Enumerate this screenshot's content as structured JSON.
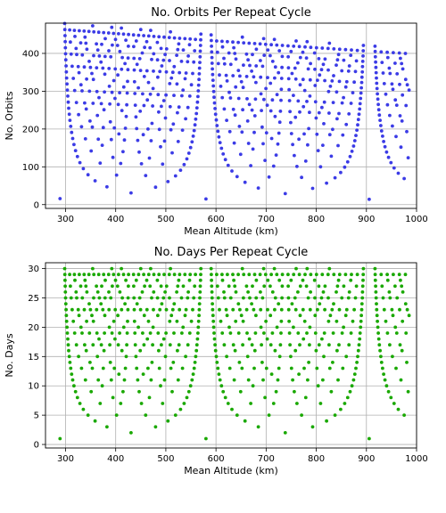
{
  "chart_data": [
    {
      "id": "orbits",
      "type": "scatter",
      "title": "No. Orbits Per Repeat Cycle",
      "xlabel": "Mean Altitude (km)",
      "ylabel": "No. Orbits",
      "xlim": [
        260,
        1000
      ],
      "ylim": [
        -10,
        480
      ],
      "xticks": [
        300,
        400,
        500,
        600,
        700,
        800,
        900,
        1000
      ],
      "yticks": [
        0,
        100,
        200,
        300,
        400
      ],
      "grid": true,
      "color": "#3b3be6",
      "cycle_days": 30,
      "altitude_range_km": [
        285,
        985
      ],
      "sample_points": [
        {
          "x": 287,
          "y": 460
        },
        {
          "x": 290,
          "y": 155
        },
        {
          "x": 300,
          "y": 90
        },
        {
          "x": 325,
          "y": 60
        },
        {
          "x": 360,
          "y": 45
        },
        {
          "x": 402,
          "y": 30
        },
        {
          "x": 450,
          "y": 45
        },
        {
          "x": 495,
          "y": 75
        },
        {
          "x": 548,
          "y": 14
        },
        {
          "x": 600,
          "y": 75
        },
        {
          "x": 650,
          "y": 45
        },
        {
          "x": 710,
          "y": 28
        },
        {
          "x": 760,
          "y": 45
        },
        {
          "x": 820,
          "y": 75
        },
        {
          "x": 875,
          "y": 14
        },
        {
          "x": 930,
          "y": 80
        },
        {
          "x": 960,
          "y": 55
        },
        {
          "x": 980,
          "y": 315
        },
        {
          "x": 550,
          "y": 445
        },
        {
          "x": 875,
          "y": 420
        }
      ]
    },
    {
      "id": "days",
      "type": "scatter",
      "title": "No. Days Per Repeat Cycle",
      "xlabel": "Mean Altitude (km)",
      "ylabel": "No. Days",
      "xlim": [
        260,
        1000
      ],
      "ylim": [
        -0.6,
        31
      ],
      "xticks": [
        300,
        400,
        500,
        600,
        700,
        800,
        900,
        1000
      ],
      "yticks": [
        0,
        5,
        10,
        15,
        20,
        25,
        30
      ],
      "grid": true,
      "color": "#19a800",
      "cycle_days": 30,
      "altitude_range_km": [
        285,
        985
      ],
      "sample_points": [
        {
          "x": 287,
          "y": 11
        },
        {
          "x": 300,
          "y": 6
        },
        {
          "x": 320,
          "y": 5
        },
        {
          "x": 350,
          "y": 3
        },
        {
          "x": 402,
          "y": 2
        },
        {
          "x": 450,
          "y": 3
        },
        {
          "x": 495,
          "y": 5
        },
        {
          "x": 548,
          "y": 1
        },
        {
          "x": 600,
          "y": 5
        },
        {
          "x": 650,
          "y": 3
        },
        {
          "x": 710,
          "y": 2
        },
        {
          "x": 760,
          "y": 3
        },
        {
          "x": 820,
          "y": 5
        },
        {
          "x": 875,
          "y": 1
        },
        {
          "x": 930,
          "y": 5
        },
        {
          "x": 960,
          "y": 4
        },
        {
          "x": 980,
          "y": 10
        },
        {
          "x": 550,
          "y": 29
        },
        {
          "x": 875,
          "y": 29
        },
        {
          "x": 300,
          "y": 30
        }
      ]
    }
  ]
}
